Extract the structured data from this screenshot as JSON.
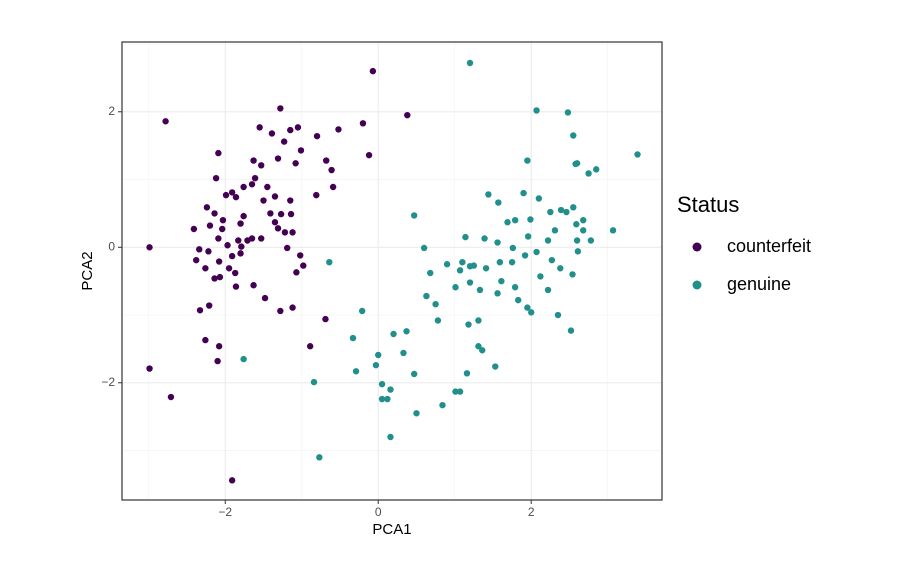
{
  "chart_data": {
    "type": "scatter",
    "x_label": "PCA1",
    "y_label": "PCA2",
    "legend_title": "Status",
    "legend_position": "right",
    "grid": true,
    "xlim": [
      -3.35,
      3.71
    ],
    "ylim": [
      -3.73,
      3.03
    ],
    "xticks": [
      {
        "value": -2,
        "label": "−2"
      },
      0,
      2
    ],
    "yticks": [
      {
        "value": -2,
        "label": "−2"
      },
      0,
      2
    ],
    "minor_xticks": [
      -3,
      -1,
      1,
      3
    ],
    "minor_yticks": [
      -3,
      -1,
      1,
      3
    ],
    "series": [
      {
        "name": "counterfeit",
        "color": "#440154",
        "x": [
          -2.78,
          -2.99,
          -2.99,
          -2.71,
          -1.91,
          -0.07,
          0.38,
          -0.2,
          -0.12,
          -0.52,
          -1.28,
          -1.55,
          -1.15,
          -1.05,
          -1.39,
          -1.23,
          -0.8,
          -1.01,
          -0.68,
          -0.61,
          -0.59,
          -1.31,
          -1.63,
          -2.09,
          -2.12,
          -1.53,
          -1.08,
          -0.81,
          -1.61,
          -1.65,
          -1.45,
          -1.76,
          -1.91,
          -1.86,
          -1.99,
          -2.24,
          -2.14,
          -1.5,
          -1.35,
          -1.15,
          -1.27,
          -1.14,
          -1.12,
          -1.22,
          -1.41,
          -1.76,
          -1.8,
          -2.03,
          -2.04,
          -2.41,
          -2.2,
          -2.09,
          -1.53,
          -1.65,
          -1.71,
          -1.79,
          -1.97,
          -2.34,
          -2.22,
          -2.08,
          -2.38,
          -2.26,
          -1.8,
          -1.91,
          -1.31,
          -1.19,
          -1.02,
          -0.98,
          -1.07,
          -1.95,
          -1.87,
          -2.07,
          -1.86,
          -1.63,
          -2.14,
          -1.48,
          -1.28,
          -1.12,
          -0.69,
          -2.21,
          -2.33,
          -2.26,
          -2.08,
          -2.1,
          -0.89,
          -1.83,
          -1.35
        ],
        "values": [
          1.86,
          0,
          -1.79,
          -2.21,
          -3.44,
          2.6,
          1.95,
          1.83,
          1.36,
          1.74,
          2.05,
          1.77,
          1.73,
          1.77,
          1.68,
          1.56,
          1.64,
          1.43,
          1.28,
          1.14,
          0.89,
          1.31,
          1.28,
          1.39,
          1.02,
          1.21,
          1.24,
          0.77,
          1.02,
          0.93,
          0.89,
          0.89,
          0.81,
          0.74,
          0.77,
          0.59,
          0.5,
          0.69,
          0.75,
          0.69,
          0.49,
          0.49,
          0.22,
          0.22,
          0.5,
          0.46,
          0.35,
          0.4,
          0.27,
          0.27,
          0.32,
          0.13,
          0.13,
          0.13,
          0.1,
          0.01,
          0.03,
          -0.03,
          -0.06,
          -0.21,
          -0.19,
          -0.31,
          -0.09,
          -0.13,
          0.28,
          -0.01,
          -0.12,
          -0.27,
          -0.37,
          -0.31,
          -0.38,
          -0.44,
          -0.58,
          -0.56,
          -0.46,
          -0.75,
          -0.94,
          -0.89,
          -1.06,
          -0.86,
          -0.93,
          -1.37,
          -1.46,
          -1.68,
          -1.46,
          0.1,
          0.37
        ]
      },
      {
        "name": "genuine",
        "color": "#21908C",
        "x": [
          1.2,
          2.07,
          2.48,
          2.55,
          3.39,
          1.95,
          2.6,
          2.58,
          2.75,
          2.85,
          1.9,
          1.44,
          1.57,
          2.1,
          2.25,
          2.39,
          2.55,
          2.46,
          2.68,
          3.07,
          0.47,
          1.79,
          1.69,
          1.99,
          1.96,
          2.22,
          2.31,
          2.59,
          2.68,
          2.6,
          2.78,
          2.61,
          1.14,
          1.39,
          1.56,
          1.76,
          0.6,
          0.9,
          1.1,
          1.2,
          1.07,
          1.25,
          1.41,
          1.59,
          1.75,
          1.92,
          2.07,
          2.12,
          2.27,
          2.22,
          2.38,
          2.54,
          1.61,
          1.2,
          1.01,
          1.33,
          1.56,
          1.79,
          1.83,
          2,
          1.95,
          2.35,
          2.52,
          0.68,
          0.63,
          0.75,
          0.78,
          1.18,
          1.31,
          -0.64,
          -1.76,
          -0.84,
          -0.77,
          -0.33,
          -0.21,
          0,
          0.2,
          0.37,
          -0.03,
          -0.29,
          0.33,
          0.05,
          0.16,
          0.12,
          0.47,
          0.5,
          0.84,
          1.01,
          1.07,
          1.16,
          1.31,
          1.36,
          1.53,
          0.16,
          0.05
        ],
        "values": [
          2.72,
          2.02,
          1.99,
          1.65,
          1.37,
          1.28,
          1.24,
          1.23,
          1.09,
          1.15,
          0.8,
          0.78,
          0.66,
          0.72,
          0.52,
          0.55,
          0.59,
          0.52,
          0.4,
          0.25,
          0.47,
          0.4,
          0.37,
          0.41,
          0.16,
          0.1,
          0.25,
          0.34,
          0.25,
          0.1,
          0.1,
          -0.06,
          0.15,
          0.13,
          0.07,
          -0.01,
          -0.01,
          -0.25,
          -0.22,
          -0.28,
          -0.34,
          -0.27,
          -0.31,
          -0.22,
          -0.22,
          -0.12,
          -0.07,
          -0.43,
          -0.19,
          -0.63,
          -0.31,
          -0.4,
          -0.5,
          -0.52,
          -0.59,
          -0.63,
          -0.68,
          -0.59,
          -0.78,
          -0.96,
          -0.89,
          -1,
          -1.23,
          -0.38,
          -0.72,
          -0.84,
          -1.08,
          -1.14,
          -1.08,
          -0.22,
          -1.65,
          -1.99,
          -3.1,
          -1.34,
          -0.94,
          -1.59,
          -1.28,
          -1.24,
          -1.74,
          -1.83,
          -1.56,
          -2.02,
          -2.1,
          -2.24,
          -1.87,
          -2.45,
          -2.33,
          -2.13,
          -2.13,
          -1.86,
          -1.46,
          -1.52,
          -1.76,
          -2.8,
          -2.24
        ]
      }
    ]
  }
}
